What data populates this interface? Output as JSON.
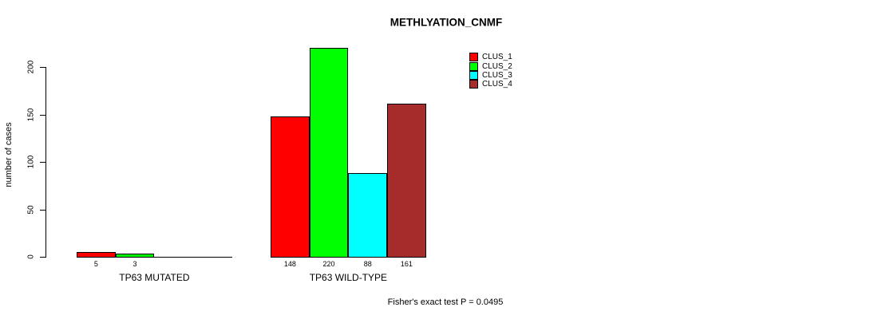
{
  "chart_data": {
    "type": "bar",
    "title": "METHLYATION_CNMF",
    "ylabel": "number of cases",
    "xlabel": "",
    "ylim": [
      0,
      220
    ],
    "yticks": [
      0,
      50,
      100,
      150,
      200
    ],
    "grid": false,
    "legend_position": "top-right",
    "series": [
      {
        "name": "CLUS_1",
        "color": "#FF0000"
      },
      {
        "name": "CLUS_2",
        "color": "#00FF00"
      },
      {
        "name": "CLUS_3",
        "color": "#00FFFF"
      },
      {
        "name": "CLUS_4",
        "color": "#A62B2B"
      }
    ],
    "groups": [
      {
        "label": "TP63 MUTATED",
        "values": [
          5,
          3,
          0,
          0
        ],
        "value_labels": [
          "5",
          "3",
          "",
          ""
        ]
      },
      {
        "label": "TP63 WILD-TYPE",
        "values": [
          148,
          220,
          88,
          161
        ],
        "value_labels": [
          "148",
          "220",
          "88",
          "161"
        ]
      }
    ],
    "annotation": "Fisher's exact test P = 0.0495"
  }
}
